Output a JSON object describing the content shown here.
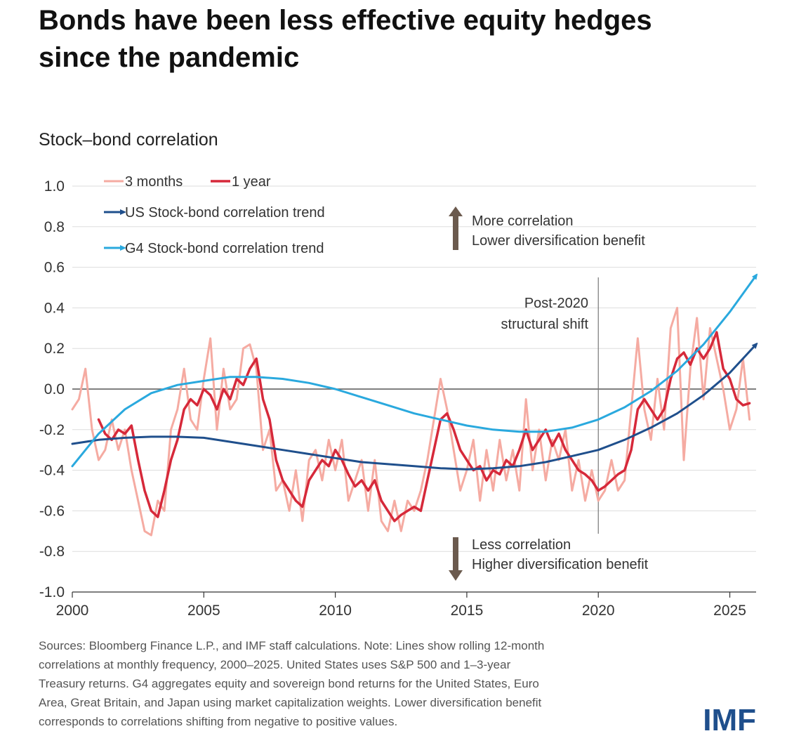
{
  "chart_data": {
    "type": "line",
    "title": [
      "Bonds have been less effective equity hedges",
      "since the pandemic"
    ],
    "y_label": "Stock–bond correlation",
    "xlim": [
      2000,
      2026
    ],
    "xticks": [
      2000,
      2005,
      2010,
      2015,
      2020,
      2025
    ],
    "ylim": [
      -1,
      1
    ],
    "yticks": [
      {
        "value": 1,
        "label": "1.0"
      },
      0.8,
      0.6,
      0.4,
      0.2,
      {
        "value": 0,
        "label": "0.0"
      },
      -0.2,
      -0.4,
      -0.6,
      -0.8,
      {
        "value": -1,
        "label": "-1.0"
      }
    ],
    "grid": true,
    "x": [
      2000,
      2000.25,
      2000.5,
      2000.75,
      2001,
      2001.25,
      2001.5,
      2001.75,
      2002,
      2002.25,
      2002.5,
      2002.75,
      2003,
      2003.25,
      2003.5,
      2003.75,
      2004,
      2004.25,
      2004.5,
      2004.75,
      2005,
      2005.25,
      2005.5,
      2005.75,
      2006,
      2006.25,
      2006.5,
      2006.75,
      2007,
      2007.25,
      2007.5,
      2007.75,
      2008,
      2008.25,
      2008.5,
      2008.75,
      2009,
      2009.25,
      2009.5,
      2009.75,
      2010,
      2010.25,
      2010.5,
      2010.75,
      2011,
      2011.25,
      2011.5,
      2011.75,
      2012,
      2012.25,
      2012.5,
      2012.75,
      2013,
      2013.25,
      2013.5,
      2013.75,
      2014,
      2014.25,
      2014.5,
      2014.75,
      2015,
      2015.25,
      2015.5,
      2015.75,
      2016,
      2016.25,
      2016.5,
      2016.75,
      2017,
      2017.25,
      2017.5,
      2017.75,
      2018,
      2018.25,
      2018.5,
      2018.75,
      2019,
      2019.25,
      2019.5,
      2019.75,
      2020,
      2020.25,
      2020.5,
      2020.75,
      2021,
      2021.25,
      2021.5,
      2021.75,
      2022,
      2022.25,
      2022.5,
      2022.75,
      2023,
      2023.25,
      2023.5,
      2023.75,
      2024,
      2024.25,
      2024.5,
      2024.75,
      2025,
      2025.25,
      2025.5,
      2025.75
    ],
    "series": [
      {
        "name": "3 months",
        "color": "#f5aba2",
        "width": 3,
        "values": [
          -0.1,
          -0.05,
          0.1,
          -0.2,
          -0.35,
          -0.3,
          -0.15,
          -0.3,
          -0.2,
          -0.4,
          -0.55,
          -0.7,
          -0.72,
          -0.55,
          -0.6,
          -0.2,
          -0.1,
          0.1,
          -0.15,
          -0.2,
          0.05,
          0.25,
          -0.2,
          0.1,
          -0.1,
          -0.05,
          0.2,
          0.22,
          0.1,
          -0.3,
          -0.2,
          -0.5,
          -0.45,
          -0.6,
          -0.4,
          -0.65,
          -0.35,
          -0.3,
          -0.45,
          -0.25,
          -0.4,
          -0.25,
          -0.55,
          -0.45,
          -0.35,
          -0.6,
          -0.35,
          -0.65,
          -0.7,
          -0.55,
          -0.7,
          -0.55,
          -0.6,
          -0.5,
          -0.35,
          -0.15,
          0.05,
          -0.1,
          -0.3,
          -0.5,
          -0.4,
          -0.25,
          -0.55,
          -0.3,
          -0.5,
          -0.25,
          -0.45,
          -0.3,
          -0.5,
          -0.05,
          -0.4,
          -0.2,
          -0.45,
          -0.25,
          -0.35,
          -0.2,
          -0.5,
          -0.35,
          -0.55,
          -0.4,
          -0.55,
          -0.5,
          -0.35,
          -0.5,
          -0.45,
          -0.1,
          0.25,
          -0.1,
          -0.25,
          0.05,
          -0.2,
          0.3,
          0.4,
          -0.35,
          0.1,
          0.35,
          -0.05,
          0.3,
          0.15,
          0.0,
          -0.2,
          -0.1,
          0.15,
          -0.15
        ]
      },
      {
        "name": "1 year",
        "color": "#d6293a",
        "width": 3.5,
        "values": [
          null,
          null,
          null,
          null,
          -0.15,
          -0.22,
          -0.25,
          -0.2,
          -0.22,
          -0.18,
          -0.35,
          -0.5,
          -0.6,
          -0.63,
          -0.5,
          -0.35,
          -0.25,
          -0.1,
          -0.05,
          -0.08,
          0.0,
          -0.03,
          -0.1,
          0.0,
          -0.05,
          0.05,
          0.02,
          0.1,
          0.15,
          -0.05,
          -0.15,
          -0.35,
          -0.45,
          -0.5,
          -0.55,
          -0.58,
          -0.45,
          -0.4,
          -0.35,
          -0.38,
          -0.3,
          -0.35,
          -0.42,
          -0.48,
          -0.45,
          -0.5,
          -0.45,
          -0.55,
          -0.6,
          -0.65,
          -0.62,
          -0.6,
          -0.58,
          -0.6,
          -0.45,
          -0.3,
          -0.15,
          -0.12,
          -0.2,
          -0.3,
          -0.35,
          -0.4,
          -0.38,
          -0.45,
          -0.4,
          -0.42,
          -0.35,
          -0.38,
          -0.3,
          -0.2,
          -0.3,
          -0.25,
          -0.2,
          -0.28,
          -0.22,
          -0.3,
          -0.35,
          -0.4,
          -0.42,
          -0.45,
          -0.5,
          -0.48,
          -0.45,
          -0.42,
          -0.4,
          -0.3,
          -0.1,
          -0.05,
          -0.1,
          -0.15,
          -0.1,
          0.05,
          0.15,
          0.18,
          0.12,
          0.2,
          0.15,
          0.2,
          0.28,
          0.1,
          0.05,
          -0.05,
          -0.08,
          -0.07
        ]
      },
      {
        "name": "US Stock-bond correlation trend",
        "color": "#1f4f8c",
        "width": 3,
        "arrow": true,
        "x": [
          2000,
          2001,
          2002,
          2003,
          2004,
          2005,
          2006,
          2007,
          2008,
          2009,
          2010,
          2011,
          2012,
          2013,
          2014,
          2015,
          2016,
          2017,
          2018,
          2019,
          2020,
          2021,
          2022,
          2023,
          2024,
          2025,
          2026
        ],
        "values": [
          -0.27,
          -0.25,
          -0.24,
          -0.235,
          -0.235,
          -0.24,
          -0.26,
          -0.28,
          -0.3,
          -0.32,
          -0.34,
          -0.36,
          -0.37,
          -0.38,
          -0.39,
          -0.395,
          -0.39,
          -0.38,
          -0.36,
          -0.33,
          -0.3,
          -0.25,
          -0.19,
          -0.12,
          -0.03,
          0.08,
          0.22
        ]
      },
      {
        "name": "G4 Stock-bond correlation trend",
        "color": "#2aa9de",
        "width": 3,
        "arrow": true,
        "x": [
          2000,
          2001,
          2002,
          2003,
          2004,
          2005,
          2006,
          2007,
          2008,
          2009,
          2010,
          2011,
          2012,
          2013,
          2014,
          2015,
          2016,
          2017,
          2018,
          2019,
          2020,
          2021,
          2022,
          2023,
          2024,
          2025,
          2026
        ],
        "values": [
          -0.38,
          -0.22,
          -0.1,
          -0.02,
          0.02,
          0.04,
          0.06,
          0.06,
          0.05,
          0.03,
          0.0,
          -0.04,
          -0.08,
          -0.12,
          -0.15,
          -0.18,
          -0.2,
          -0.21,
          -0.21,
          -0.19,
          -0.15,
          -0.09,
          -0.01,
          0.09,
          0.22,
          0.38,
          0.56
        ]
      }
    ],
    "vline": 2020,
    "annotations": [
      [
        "More correlation",
        "Lower diversification benefit"
      ],
      [
        "Less correlation",
        "Higher diversification benefit"
      ],
      [
        "Post-2020",
        "structural shift"
      ]
    ],
    "note": [
      "Sources: Bloomberg Finance L.P., and IMF staff calculations. Note: Lines show rolling 12-month",
      "correlations at monthly frequency, 2000–2025. United States uses S&P 500 and 1–3-year",
      "Treasury returns. G4 aggregates equity and sovereign bond returns for the United States, Euro",
      "Area, Great Britain, and Japan using market capitalization weights. Lower diversification benefit",
      "corresponds to correlations shifting from negative to positive values."
    ],
    "logo": "IMF"
  }
}
